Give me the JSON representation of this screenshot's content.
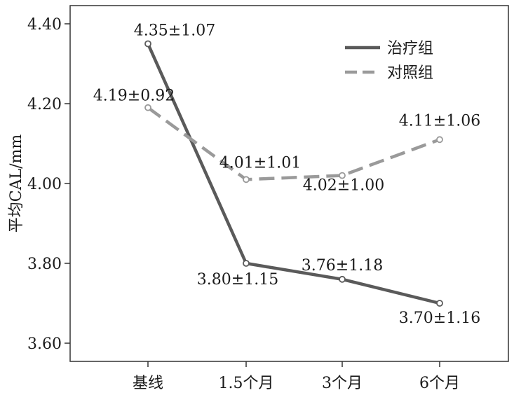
{
  "chart_data": {
    "type": "line",
    "categories": [
      "基线",
      "1.5个月",
      "3个月",
      "6个月"
    ],
    "ylabel": "平均CAL/mm",
    "xlabel": "",
    "ylim": [
      3.55,
      4.45
    ],
    "yticks": [
      3.6,
      3.8,
      4.0,
      4.2,
      4.4
    ],
    "ytick_labels": [
      "3.60",
      "3.80",
      "4.00",
      "4.20",
      "4.40"
    ],
    "grid": false,
    "legend_position": "top-right",
    "series": [
      {
        "name": "治疗组",
        "style": "solid",
        "color": "#5a5a5a",
        "values": [
          4.35,
          3.8,
          3.76,
          3.7
        ],
        "labels": [
          "4.35±1.07",
          "3.80±1.15",
          "3.76±1.18",
          "3.70±1.16"
        ]
      },
      {
        "name": "对照组",
        "style": "dashed",
        "color": "#9a9a9a",
        "values": [
          4.19,
          4.01,
          4.02,
          4.11
        ],
        "labels": [
          "4.19±0.92",
          "4.01±1.01",
          "4.02±1.00",
          "4.11±1.06"
        ]
      }
    ]
  }
}
